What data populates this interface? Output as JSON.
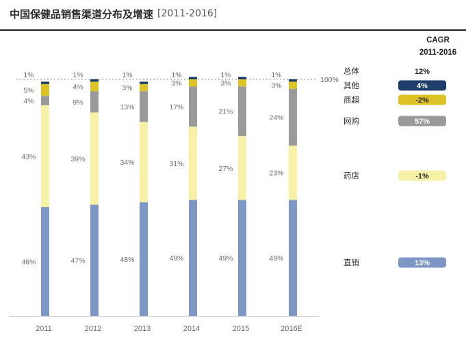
{
  "header": {
    "title": "中国保健品销售渠道分布及增速",
    "period": "[2011-2016]"
  },
  "colors": {
    "其他": "#1d3d6b",
    "商超": "#dcc326",
    "网购": "#9a9a9a",
    "药店": "#f7f1a7",
    "直销": "#7e98c6",
    "总体": "#ffffff"
  },
  "chart_data": {
    "type": "bar",
    "stacked": true,
    "percent": true,
    "categories": [
      "2011",
      "2012",
      "2013",
      "2014",
      "2015",
      "2016E"
    ],
    "series": [
      {
        "name": "直销",
        "values": [
          46,
          47,
          48,
          49,
          49,
          49
        ],
        "labels": [
          "46%",
          "47%",
          "48%",
          "49%",
          "49%",
          "49%"
        ]
      },
      {
        "name": "药店",
        "values": [
          43,
          39,
          34,
          31,
          27,
          23
        ],
        "labels": [
          "43%",
          "39%",
          "34%",
          "31%",
          "27%",
          "23%"
        ]
      },
      {
        "name": "网购",
        "values": [
          4,
          9,
          13,
          17,
          21,
          24
        ],
        "labels": [
          "4%",
          "9%",
          "13%",
          "17%",
          "21%",
          "24%"
        ]
      },
      {
        "name": "商超",
        "values": [
          5,
          4,
          3,
          3,
          3,
          3
        ],
        "labels": [
          "5%",
          "4%",
          "3%",
          "3%",
          "3%",
          "3%"
        ]
      },
      {
        "name": "其他",
        "values": [
          1,
          1,
          1,
          1,
          1,
          1
        ],
        "labels": [
          "1%",
          "1%",
          "1%",
          "1%",
          "1%",
          "1%"
        ]
      }
    ],
    "total_label": "100%",
    "ylim": [
      0,
      100
    ],
    "legend": {
      "header": [
        "CAGR",
        "2011-2016"
      ],
      "items": [
        {
          "name": "总体",
          "cagr": "12%"
        },
        {
          "name": "其他",
          "cagr": "4%"
        },
        {
          "name": "商超",
          "cagr": "-2%"
        },
        {
          "name": "网购",
          "cagr": "57%"
        },
        {
          "name": "药店",
          "cagr": "-1%"
        },
        {
          "name": "直销",
          "cagr": "13%"
        }
      ]
    }
  }
}
